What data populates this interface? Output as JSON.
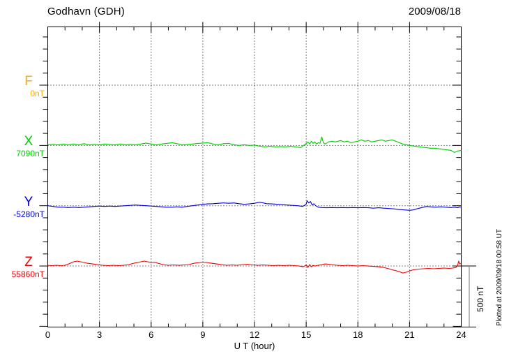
{
  "header": {
    "title": "Godhavn (GDH)",
    "date": "2009/08/18"
  },
  "xaxis": {
    "label": "U T (hour)",
    "ticks": [
      0,
      3,
      6,
      9,
      12,
      15,
      18,
      21,
      24
    ]
  },
  "scalebar": {
    "label": "500 nT"
  },
  "plotted_note": "Plotted at 2009/09/18 00:58 UT",
  "components": [
    {
      "id": "F",
      "label": "F",
      "baseline_label": "0nT",
      "color": "#FFAA00"
    },
    {
      "id": "X",
      "label": "X",
      "baseline_label": "7090nT",
      "color": "#00CC00"
    },
    {
      "id": "Y",
      "label": "Y",
      "baseline_label": "-5280nT",
      "color": "#0000DD"
    },
    {
      "id": "Z",
      "label": "Z",
      "baseline_label": "55860nT",
      "color": "#EE0000"
    }
  ],
  "chart_data": {
    "type": "line",
    "title": "Godhavn (GDH) magnetogram",
    "date": "2009/08/18",
    "xlabel": "U T (hour)",
    "xlim": [
      0,
      24
    ],
    "x_tick_step_major": 3,
    "x_tick_step_minor": 1,
    "grid": "dotted vertical at 3h marks, dotted horizontal at each component baseline",
    "scale_division_nT": 500,
    "offset_unit": "nT relative to component baseline",
    "series": [
      {
        "name": "F",
        "baseline_nT": 0,
        "color": "#FFAA00",
        "points": []
      },
      {
        "name": "X",
        "baseline_nT": 7090,
        "color": "#00CC00",
        "points": [
          [
            0,
            6
          ],
          [
            0.3,
            9
          ],
          [
            0.6,
            6
          ],
          [
            0.9,
            12
          ],
          [
            1.2,
            6
          ],
          [
            1.5,
            12
          ],
          [
            1.8,
            6
          ],
          [
            2.1,
            15
          ],
          [
            2.4,
            6
          ],
          [
            2.7,
            9
          ],
          [
            3,
            6
          ],
          [
            3.3,
            12
          ],
          [
            3.6,
            9
          ],
          [
            3.9,
            6
          ],
          [
            4.2,
            12
          ],
          [
            4.5,
            6
          ],
          [
            4.8,
            9
          ],
          [
            5.1,
            6
          ],
          [
            5.4,
            12
          ],
          [
            5.7,
            20
          ],
          [
            6,
            12
          ],
          [
            6.3,
            6
          ],
          [
            6.6,
            12
          ],
          [
            6.9,
            17
          ],
          [
            7.2,
            23
          ],
          [
            7.5,
            15
          ],
          [
            7.8,
            6
          ],
          [
            8.1,
            9
          ],
          [
            8.4,
            12
          ],
          [
            8.7,
            17
          ],
          [
            9,
            20
          ],
          [
            9.3,
            23
          ],
          [
            9.6,
            12
          ],
          [
            9.9,
            6
          ],
          [
            10.2,
            15
          ],
          [
            10.5,
            17
          ],
          [
            10.8,
            6
          ],
          [
            11.1,
            0
          ],
          [
            11.4,
            6
          ],
          [
            11.7,
            0
          ],
          [
            12,
            3
          ],
          [
            12.3,
            -6
          ],
          [
            12.6,
            -12
          ],
          [
            12.9,
            -6
          ],
          [
            13.2,
            -12
          ],
          [
            13.5,
            -9
          ],
          [
            13.8,
            -12
          ],
          [
            14.1,
            -6
          ],
          [
            14.4,
            -12
          ],
          [
            14.7,
            -17
          ],
          [
            14.9,
            6
          ],
          [
            15,
            17
          ],
          [
            15.1,
            29
          ],
          [
            15.2,
            12
          ],
          [
            15.3,
            35
          ],
          [
            15.4,
            17
          ],
          [
            15.5,
            29
          ],
          [
            15.6,
            12
          ],
          [
            15.7,
            23
          ],
          [
            15.8,
            17
          ],
          [
            15.9,
            70
          ],
          [
            16,
            23
          ],
          [
            16.1,
            12
          ],
          [
            16.3,
            29
          ],
          [
            16.5,
            35
          ],
          [
            16.7,
            29
          ],
          [
            17,
            41
          ],
          [
            17.2,
            29
          ],
          [
            17.4,
            35
          ],
          [
            17.6,
            23
          ],
          [
            17.8,
            29
          ],
          [
            18,
            35
          ],
          [
            18.2,
            46
          ],
          [
            18.4,
            35
          ],
          [
            18.6,
            41
          ],
          [
            18.8,
            29
          ],
          [
            19,
            35
          ],
          [
            19.2,
            41
          ],
          [
            19.4,
            46
          ],
          [
            19.6,
            35
          ],
          [
            19.8,
            41
          ],
          [
            20,
            46
          ],
          [
            20.2,
            35
          ],
          [
            20.4,
            23
          ],
          [
            20.6,
            12
          ],
          [
            20.8,
            6
          ],
          [
            21,
            0
          ],
          [
            21.3,
            -6
          ],
          [
            21.6,
            -12
          ],
          [
            21.9,
            -17
          ],
          [
            22.2,
            -23
          ],
          [
            22.5,
            -23
          ],
          [
            22.8,
            -29
          ],
          [
            23.1,
            -35
          ],
          [
            23.4,
            -41
          ],
          [
            23.6,
            -58
          ],
          [
            23.8,
            -46
          ],
          [
            24,
            -41
          ]
        ]
      },
      {
        "name": "Y",
        "baseline_nT": -5280,
        "color": "#0000DD",
        "points": [
          [
            0,
            0
          ],
          [
            0.3,
            -6
          ],
          [
            0.6,
            -12
          ],
          [
            0.9,
            -12
          ],
          [
            1.2,
            -15
          ],
          [
            1.5,
            -12
          ],
          [
            1.8,
            -15
          ],
          [
            2.1,
            -12
          ],
          [
            2.4,
            -9
          ],
          [
            2.7,
            -6
          ],
          [
            3,
            -3
          ],
          [
            3.3,
            -6
          ],
          [
            3.6,
            -3
          ],
          [
            3.9,
            -6
          ],
          [
            4.2,
            -3
          ],
          [
            4.5,
            0
          ],
          [
            4.8,
            3
          ],
          [
            5.1,
            6
          ],
          [
            5.4,
            3
          ],
          [
            5.7,
            0
          ],
          [
            6,
            -3
          ],
          [
            6.3,
            -6
          ],
          [
            6.6,
            -9
          ],
          [
            6.9,
            -12
          ],
          [
            7.2,
            -12
          ],
          [
            7.5,
            -9
          ],
          [
            7.8,
            -12
          ],
          [
            8.1,
            -6
          ],
          [
            8.4,
            0
          ],
          [
            8.7,
            6
          ],
          [
            9,
            12
          ],
          [
            9.3,
            15
          ],
          [
            9.6,
            17
          ],
          [
            9.9,
            20
          ],
          [
            10.2,
            23
          ],
          [
            10.5,
            20
          ],
          [
            10.8,
            23
          ],
          [
            11.1,
            17
          ],
          [
            11.4,
            12
          ],
          [
            11.7,
            15
          ],
          [
            12,
            20
          ],
          [
            12.3,
            29
          ],
          [
            12.5,
            23
          ],
          [
            12.7,
            17
          ],
          [
            13,
            15
          ],
          [
            13.3,
            12
          ],
          [
            13.6,
            9
          ],
          [
            13.9,
            6
          ],
          [
            14.2,
            3
          ],
          [
            14.5,
            0
          ],
          [
            14.8,
            -6
          ],
          [
            15,
            12
          ],
          [
            15.05,
            41
          ],
          [
            15.15,
            23
          ],
          [
            15.25,
            35
          ],
          [
            15.35,
            6
          ],
          [
            15.45,
            17
          ],
          [
            15.55,
            0
          ],
          [
            15.7,
            -12
          ],
          [
            15.9,
            -15
          ],
          [
            16.2,
            -17
          ],
          [
            16.5,
            -15
          ],
          [
            16.8,
            -17
          ],
          [
            17.1,
            -15
          ],
          [
            17.4,
            -17
          ],
          [
            17.7,
            -15
          ],
          [
            18,
            -17
          ],
          [
            18.3,
            -15
          ],
          [
            18.6,
            -17
          ],
          [
            18.9,
            -20
          ],
          [
            19.2,
            -17
          ],
          [
            19.5,
            -20
          ],
          [
            19.8,
            -23
          ],
          [
            20.1,
            -26
          ],
          [
            20.4,
            -32
          ],
          [
            20.7,
            -35
          ],
          [
            21,
            -38
          ],
          [
            21.2,
            -35
          ],
          [
            21.5,
            -23
          ],
          [
            21.8,
            -12
          ],
          [
            22,
            -6
          ],
          [
            22.2,
            -9
          ],
          [
            22.5,
            -12
          ],
          [
            22.8,
            -9
          ],
          [
            23.1,
            -12
          ],
          [
            23.4,
            -15
          ],
          [
            23.6,
            -12
          ],
          [
            23.8,
            -17
          ],
          [
            23.9,
            -9
          ],
          [
            24,
            -15
          ]
        ]
      },
      {
        "name": "Z",
        "baseline_nT": 55860,
        "color": "#EE0000",
        "points": [
          [
            0,
            6
          ],
          [
            0.2,
            3
          ],
          [
            0.5,
            6
          ],
          [
            0.8,
            3
          ],
          [
            1,
            6
          ],
          [
            1.2,
            17
          ],
          [
            1.5,
            35
          ],
          [
            1.7,
            41
          ],
          [
            1.9,
            35
          ],
          [
            2.1,
            29
          ],
          [
            2.3,
            23
          ],
          [
            2.6,
            17
          ],
          [
            2.9,
            12
          ],
          [
            3.2,
            6
          ],
          [
            3.5,
            3
          ],
          [
            3.8,
            6
          ],
          [
            4.1,
            3
          ],
          [
            4.4,
            6
          ],
          [
            4.7,
            12
          ],
          [
            5,
            23
          ],
          [
            5.3,
            32
          ],
          [
            5.6,
            41
          ],
          [
            5.8,
            35
          ],
          [
            6,
            29
          ],
          [
            6.2,
            32
          ],
          [
            6.4,
            23
          ],
          [
            6.7,
            12
          ],
          [
            7,
            6
          ],
          [
            7.3,
            9
          ],
          [
            7.6,
            6
          ],
          [
            7.9,
            9
          ],
          [
            8.2,
            12
          ],
          [
            8.5,
            23
          ],
          [
            8.8,
            29
          ],
          [
            9,
            32
          ],
          [
            9.2,
            29
          ],
          [
            9.5,
            23
          ],
          [
            9.8,
            17
          ],
          [
            10.1,
            12
          ],
          [
            10.4,
            6
          ],
          [
            10.7,
            9
          ],
          [
            11,
            6
          ],
          [
            11.3,
            12
          ],
          [
            11.6,
            15
          ],
          [
            11.9,
            9
          ],
          [
            12.2,
            6
          ],
          [
            12.5,
            9
          ],
          [
            12.8,
            6
          ],
          [
            13.1,
            3
          ],
          [
            13.4,
            6
          ],
          [
            13.7,
            3
          ],
          [
            14,
            6
          ],
          [
            14.3,
            3
          ],
          [
            14.6,
            0
          ],
          [
            14.8,
            -6
          ],
          [
            15,
            6
          ],
          [
            15.1,
            -12
          ],
          [
            15.2,
            12
          ],
          [
            15.3,
            -6
          ],
          [
            15.4,
            6
          ],
          [
            15.5,
            0
          ],
          [
            15.7,
            6
          ],
          [
            15.9,
            12
          ],
          [
            16.1,
            17
          ],
          [
            16.3,
            15
          ],
          [
            16.5,
            12
          ],
          [
            16.8,
            6
          ],
          [
            17.1,
            3
          ],
          [
            17.4,
            6
          ],
          [
            17.7,
            3
          ],
          [
            18,
            0
          ],
          [
            18.3,
            3
          ],
          [
            18.6,
            0
          ],
          [
            18.9,
            -3
          ],
          [
            19.2,
            -6
          ],
          [
            19.5,
            -12
          ],
          [
            19.8,
            -23
          ],
          [
            20.1,
            -35
          ],
          [
            20.4,
            -46
          ],
          [
            20.6,
            -58
          ],
          [
            20.8,
            -52
          ],
          [
            21,
            -41
          ],
          [
            21.2,
            -32
          ],
          [
            21.5,
            -26
          ],
          [
            21.8,
            -23
          ],
          [
            22.1,
            -20
          ],
          [
            22.4,
            -23
          ],
          [
            22.7,
            -20
          ],
          [
            23,
            -17
          ],
          [
            23.3,
            -20
          ],
          [
            23.5,
            -17
          ],
          [
            23.7,
            -12
          ],
          [
            23.8,
            12
          ],
          [
            23.85,
            41
          ],
          [
            23.9,
            17
          ],
          [
            24,
            23
          ]
        ]
      }
    ]
  }
}
